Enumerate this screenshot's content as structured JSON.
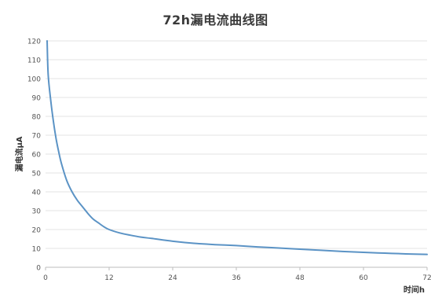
{
  "chart_data": {
    "type": "line",
    "title": "72h漏电流曲线图",
    "xlabel": "时间h",
    "ylabel": "漏电流μA",
    "xlim": [
      0,
      72
    ],
    "ylim": [
      0,
      120
    ],
    "xticks": [
      0,
      12,
      24,
      36,
      48,
      60,
      72
    ],
    "yticks": [
      0,
      10,
      20,
      30,
      40,
      50,
      60,
      70,
      80,
      90,
      100,
      110,
      120
    ],
    "grid": "horizontal",
    "legend": "none",
    "series": [
      {
        "color": "#5b93c5",
        "x": [
          0.3,
          0.5,
          1,
          1.5,
          2,
          2.5,
          3,
          4,
          5,
          6,
          7,
          8,
          9,
          10,
          11,
          12,
          14,
          16,
          18,
          20,
          24,
          28,
          32,
          36,
          40,
          44,
          48,
          52,
          56,
          60,
          64,
          68,
          72
        ],
        "y": [
          120,
          102,
          88,
          77,
          68,
          61,
          55,
          46,
          40,
          35.5,
          32,
          28.5,
          25.5,
          23.5,
          21.5,
          20,
          18.2,
          17,
          16,
          15.3,
          13.8,
          12.7,
          12,
          11.5,
          10.8,
          10.2,
          9.6,
          9.0,
          8.4,
          7.9,
          7.5,
          7.1,
          6.8
        ]
      }
    ]
  }
}
